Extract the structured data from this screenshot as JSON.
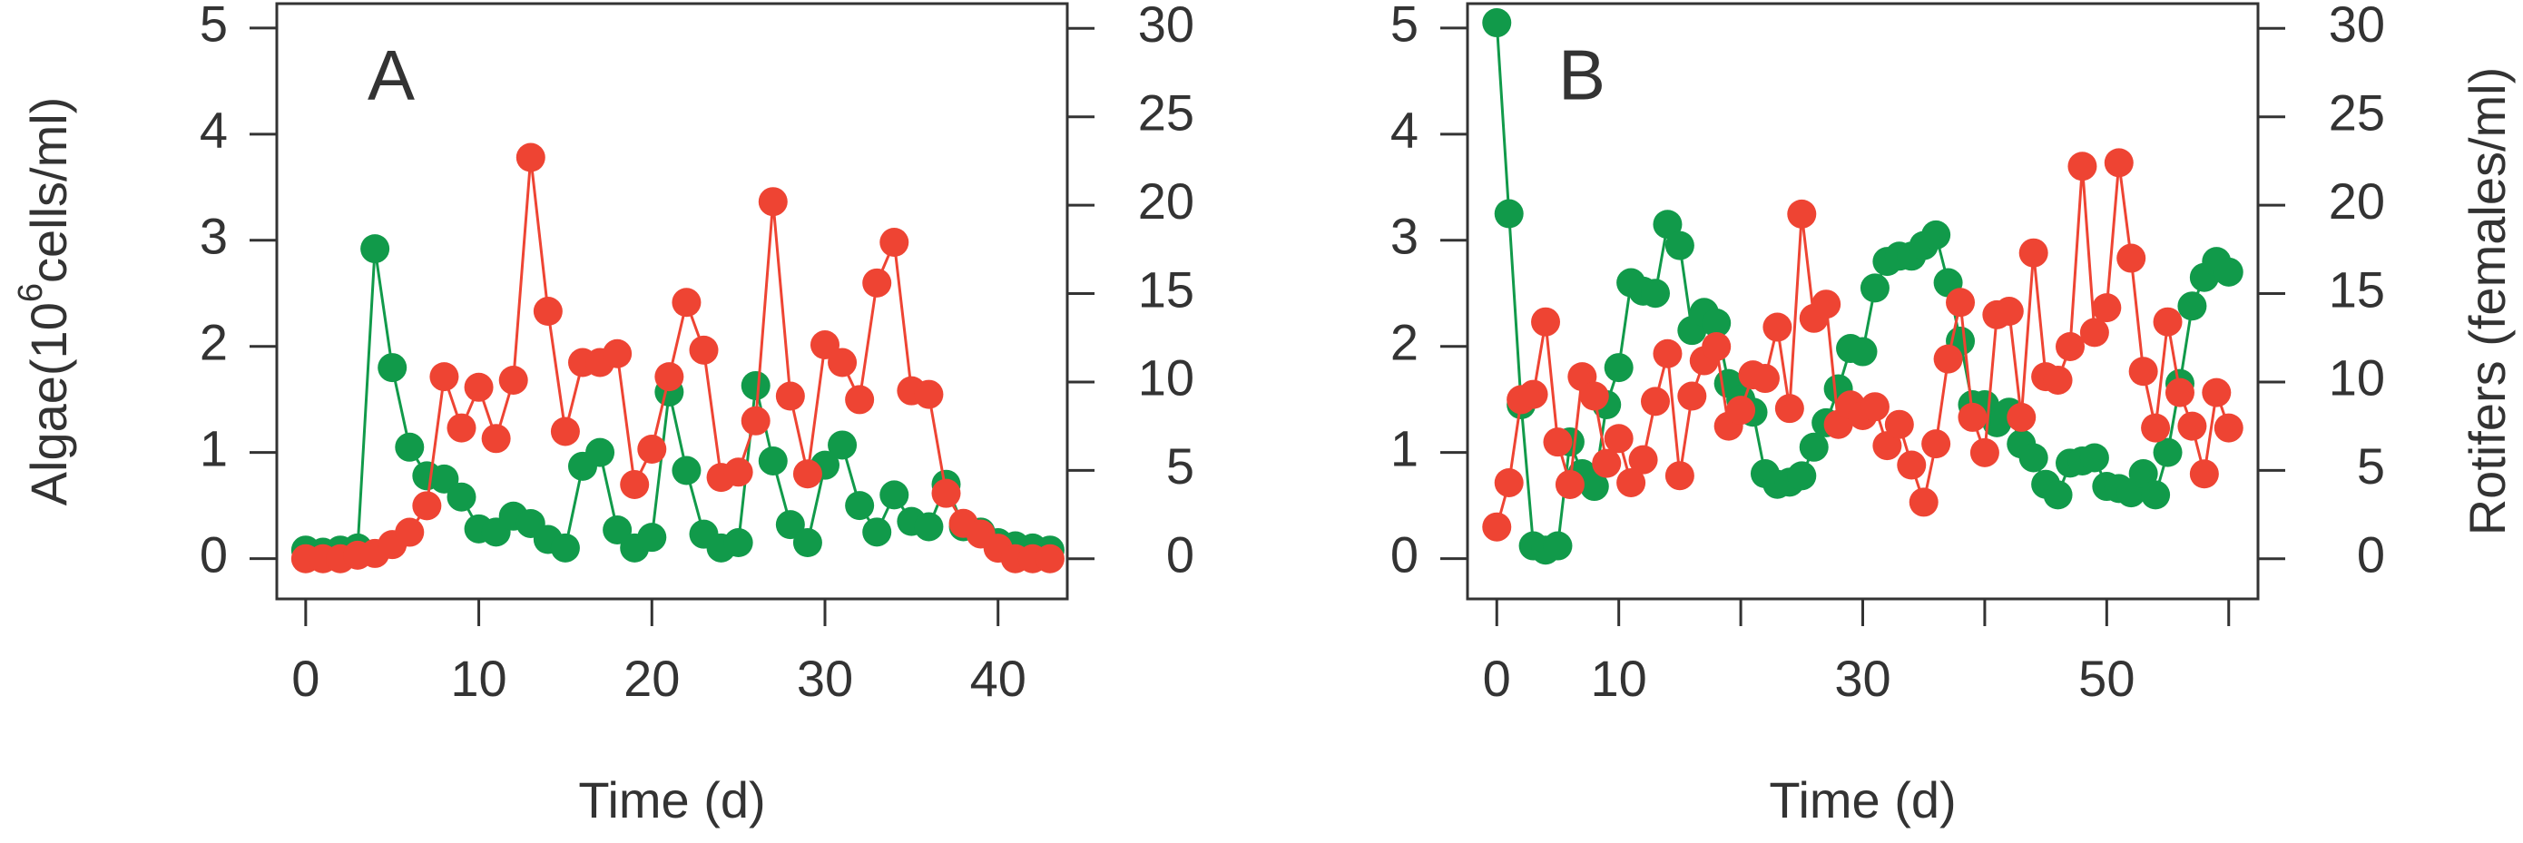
{
  "chart_data": [
    {
      "type": "line",
      "title": "A",
      "xlabel": "Time (d)",
      "ylabel": {
        "text": "Algae(10",
        "sup": "6",
        "rest": "cells/ml)"
      },
      "xlim": [
        -1.67,
        44
      ],
      "xticks": [
        0,
        10,
        20,
        30,
        40
      ],
      "ylim": [
        -0.38,
        5.23
      ],
      "yticks": [
        0,
        1,
        2,
        3,
        4,
        5
      ],
      "y2lim": [
        -2.27,
        31.4
      ],
      "y2ticks": [
        0,
        5,
        10,
        15,
        20,
        25,
        30
      ],
      "x": [
        0,
        1,
        2,
        3,
        4,
        5,
        6,
        7,
        8,
        9,
        10,
        11,
        12,
        13,
        14,
        15,
        16,
        17,
        18,
        19,
        20,
        21,
        22,
        23,
        24,
        25,
        26,
        27,
        28,
        29,
        30,
        31,
        32,
        33,
        34,
        35,
        36,
        37,
        38,
        39,
        40,
        41,
        42,
        43
      ],
      "series": [
        {
          "color": "#119a4a",
          "axis": "y",
          "values": [
            0.08,
            0.06,
            0.08,
            0.1,
            2.92,
            1.8,
            1.05,
            0.78,
            0.75,
            0.58,
            0.28,
            0.25,
            0.4,
            0.33,
            0.18,
            0.1,
            0.87,
            1.0,
            0.27,
            0.1,
            0.2,
            1.57,
            0.83,
            0.23,
            0.1,
            0.15,
            1.63,
            0.92,
            0.32,
            0.15,
            0.88,
            1.07,
            0.5,
            0.25,
            0.6,
            0.35,
            0.3,
            0.7,
            0.3,
            0.25,
            0.15,
            0.12,
            0.1,
            0.08
          ]
        },
        {
          "color": "#ee4433",
          "axis": "y2",
          "values": [
            0,
            0,
            0,
            0.2,
            0.3,
            0.8,
            1.5,
            3,
            10.3,
            7.4,
            9.7,
            6.8,
            10.1,
            22.7,
            14,
            7.2,
            11.1,
            11.1,
            11.6,
            4.2,
            6.2,
            10.3,
            14.5,
            11.8,
            4.6,
            4.9,
            7.8,
            20.2,
            9.2,
            4.8,
            12.1,
            11.1,
            9,
            15.6,
            17.9,
            9.5,
            9.3,
            3.7,
            2,
            1.4,
            0.6,
            0,
            0,
            0
          ]
        }
      ]
    },
    {
      "type": "line",
      "title": "B",
      "xlabel": "Time (d)",
      "y2label": "Rotifers (females/ml)",
      "xlim": [
        -2.4,
        62.4
      ],
      "xticks": [
        0,
        10,
        {
          "value": 20,
          "label": null
        },
        30,
        {
          "value": 40,
          "label": null
        },
        50,
        {
          "value": 60,
          "label": null
        }
      ],
      "ylim": [
        -0.38,
        5.23
      ],
      "yticks": [
        0,
        1,
        2,
        3,
        4,
        5
      ],
      "y2lim": [
        -2.27,
        31.4
      ],
      "y2ticks": [
        0,
        5,
        10,
        15,
        20,
        25,
        30
      ],
      "x": [
        0,
        1,
        2,
        3,
        4,
        5,
        6,
        7,
        8,
        9,
        10,
        11,
        12,
        13,
        14,
        15,
        16,
        17,
        18,
        19,
        20,
        21,
        22,
        23,
        24,
        25,
        26,
        27,
        28,
        29,
        30,
        31,
        32,
        33,
        34,
        35,
        36,
        37,
        38,
        39,
        40,
        41,
        42,
        43,
        44,
        45,
        46,
        47,
        48,
        49,
        50,
        51,
        52,
        53,
        54,
        55,
        56,
        57,
        58,
        59,
        60
      ],
      "series": [
        {
          "color": "#119a4a",
          "axis": "y",
          "values": [
            5.05,
            3.25,
            1.45,
            0.12,
            0.08,
            0.12,
            1.1,
            0.8,
            0.68,
            1.45,
            1.8,
            2.6,
            2.52,
            2.5,
            3.15,
            2.95,
            2.15,
            2.32,
            2.22,
            1.65,
            1.5,
            1.38,
            0.8,
            0.7,
            0.72,
            0.78,
            1.05,
            1.28,
            1.6,
            1.98,
            1.95,
            2.55,
            2.8,
            2.85,
            2.85,
            2.95,
            3.05,
            2.6,
            2.05,
            1.45,
            1.45,
            1.28,
            1.38,
            1.08,
            0.95,
            0.7,
            0.6,
            0.9,
            0.92,
            0.95,
            0.68,
            0.66,
            0.62,
            0.8,
            0.6,
            1.0,
            1.65,
            2.38,
            2.65,
            2.8,
            2.7
          ]
        },
        {
          "color": "#ee4433",
          "axis": "y2",
          "values": [
            1.8,
            4.3,
            9,
            9.3,
            13.4,
            6.6,
            4.2,
            10.3,
            9.2,
            5.4,
            6.8,
            4.3,
            5.6,
            8.9,
            11.6,
            4.7,
            9.2,
            11.2,
            12,
            7.5,
            8.4,
            10.4,
            10.2,
            13.1,
            8.5,
            19.5,
            13.6,
            14.4,
            7.6,
            8.7,
            8.1,
            8.6,
            6.4,
            7.6,
            5.3,
            3.2,
            6.5,
            11.3,
            14.5,
            8,
            6,
            13.8,
            14,
            8,
            17.3,
            10.3,
            10.1,
            12,
            22.2,
            12.8,
            14.2,
            22.4,
            17,
            10.6,
            7.4,
            13.4,
            9.4,
            7.5,
            4.8,
            9.4,
            7.4
          ]
        }
      ]
    }
  ]
}
